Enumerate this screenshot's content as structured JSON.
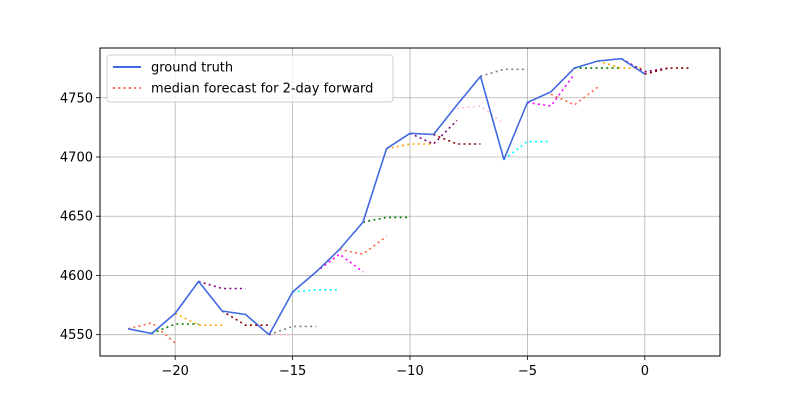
{
  "chart_data": {
    "type": "line",
    "title": "",
    "xlabel": "",
    "ylabel": "",
    "xlim": [
      -23.2,
      3.2
    ],
    "ylim": [
      4532,
      4792
    ],
    "grid": true,
    "legend_placement": "top-left",
    "x_ticks": [
      -20,
      -15,
      -10,
      -5,
      0
    ],
    "x_tick_labels": [
      "−20",
      "−15",
      "−10",
      "−5",
      "0"
    ],
    "y_ticks": [
      4550,
      4600,
      4650,
      4700,
      4750
    ],
    "y_tick_labels": [
      "4550",
      "4600",
      "4650",
      "4700",
      "4750"
    ],
    "legend": [
      {
        "label": "ground truth",
        "color": "#4169e1",
        "style": "solid"
      },
      {
        "label": "median forecast for 2-day forward",
        "color": "#ff6347",
        "style": "dotted"
      }
    ],
    "ground_truth": {
      "name": "ground truth",
      "color": "#4169e1",
      "x": [
        -22,
        -21,
        -20,
        -19,
        -18,
        -17,
        -16,
        -15,
        -14,
        -13,
        -12,
        -11,
        -10,
        -9,
        -8,
        -7,
        -6,
        -5,
        -4,
        -3,
        -2,
        -1,
        0
      ],
      "y": [
        4555,
        4551,
        4568,
        4595,
        4570,
        4567,
        4550,
        4586,
        4603,
        4622,
        4645,
        4707,
        4720,
        4719,
        4744,
        4768,
        4698,
        4746,
        4755,
        4775,
        4781,
        4783,
        4770
      ]
    },
    "forecasts": [
      {
        "color": "#ff6347",
        "x": [
          -22,
          -21,
          -20
        ],
        "y": [
          4555,
          4560,
          4543
        ]
      },
      {
        "color": "#008000",
        "x": [
          -21,
          -20,
          -19
        ],
        "y": [
          4551,
          4559,
          4559
        ]
      },
      {
        "color": "#ffa500",
        "x": [
          -20,
          -19,
          -18
        ],
        "y": [
          4568,
          4558,
          4558
        ]
      },
      {
        "color": "#800080",
        "x": [
          -19,
          -18,
          -17
        ],
        "y": [
          4595,
          4589,
          4589
        ]
      },
      {
        "color": "#8b0000",
        "x": [
          -18,
          -17,
          -16
        ],
        "y": [
          4570,
          4558,
          4558
        ]
      },
      {
        "color": "#ffc0cb",
        "x": [
          -17,
          -16,
          -15
        ],
        "y": [
          4567,
          4550,
          4550
        ]
      },
      {
        "color": "#808080",
        "x": [
          -16,
          -15,
          -14
        ],
        "y": [
          4550,
          4557,
          4557
        ]
      },
      {
        "color": "#00ffff",
        "x": [
          -15,
          -14,
          -13
        ],
        "y": [
          4586,
          4588,
          4588
        ]
      },
      {
        "color": "#ff00ff",
        "x": [
          -14,
          -13,
          -12
        ],
        "y": [
          4603,
          4618,
          4603
        ]
      },
      {
        "color": "#ff6347",
        "x": [
          -13,
          -12,
          -11
        ],
        "y": [
          4622,
          4618,
          4633
        ]
      },
      {
        "color": "#008000",
        "x": [
          -12,
          -11,
          -10
        ],
        "y": [
          4645,
          4649,
          4649
        ]
      },
      {
        "color": "#ffa500",
        "x": [
          -11,
          -10,
          -9
        ],
        "y": [
          4707,
          4711,
          4711
        ]
      },
      {
        "color": "#800080",
        "x": [
          -10,
          -9,
          -8
        ],
        "y": [
          4720,
          4711,
          4731
        ]
      },
      {
        "color": "#8b0000",
        "x": [
          -9,
          -8,
          -7
        ],
        "y": [
          4719,
          4711,
          4711
        ]
      },
      {
        "color": "#ffc0cb",
        "x": [
          -8,
          -7,
          -6
        ],
        "y": [
          4741,
          4743,
          4728
        ]
      },
      {
        "color": "#808080",
        "x": [
          -7,
          -6,
          -5
        ],
        "y": [
          4768,
          4774,
          4774
        ]
      },
      {
        "color": "#00ffff",
        "x": [
          -6,
          -5,
          -4
        ],
        "y": [
          4698,
          4713,
          4713
        ]
      },
      {
        "color": "#ff00ff",
        "x": [
          -5,
          -4,
          -3
        ],
        "y": [
          4746,
          4743,
          4770
        ]
      },
      {
        "color": "#ff6347",
        "x": [
          -4,
          -3,
          -2
        ],
        "y": [
          4753,
          4744,
          4759
        ]
      },
      {
        "color": "#008000",
        "x": [
          -3,
          -2,
          -1
        ],
        "y": [
          4775,
          4775,
          4775
        ]
      },
      {
        "color": "#ffa500",
        "x": [
          -2,
          -1,
          0
        ],
        "y": [
          4781,
          4775,
          4775
        ]
      },
      {
        "color": "#800080",
        "x": [
          -1,
          0,
          1
        ],
        "y": [
          4783,
          4772,
          4775
        ]
      },
      {
        "color": "#8b0000",
        "x": [
          0,
          1,
          2
        ],
        "y": [
          4770,
          4775,
          4775
        ]
      }
    ]
  }
}
